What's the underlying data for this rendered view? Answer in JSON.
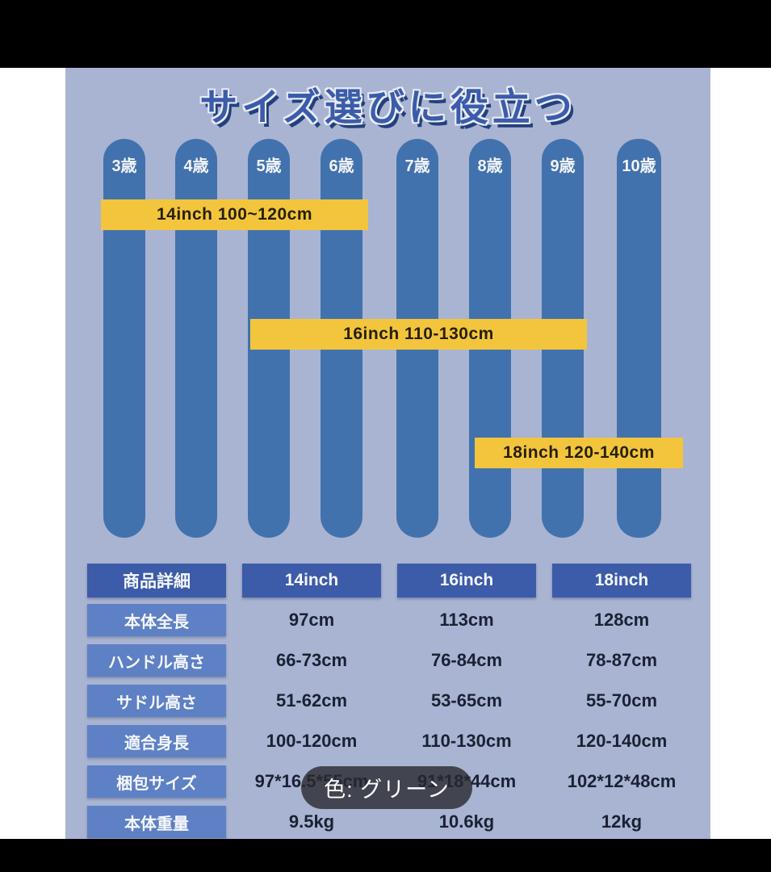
{
  "title": "サイズ選びに役立つ",
  "age_chart": {
    "ages": [
      "3歳",
      "4歳",
      "5歳",
      "6歳",
      "7歳",
      "8歳",
      "9歳",
      "10歳"
    ],
    "bands": [
      {
        "label": "14inch 100~120cm"
      },
      {
        "label": "16inch 110-130cm"
      },
      {
        "label": "18inch 120-140cm"
      }
    ]
  },
  "table": {
    "header": [
      "商品詳細",
      "14inch",
      "16inch",
      "18inch"
    ],
    "rows": [
      {
        "label": "本体全長",
        "values": [
          "97cm",
          "113cm",
          "128cm"
        ]
      },
      {
        "label": "ハンドル高さ",
        "values": [
          "66-73cm",
          "76-84cm",
          "78-87cm"
        ]
      },
      {
        "label": "サドル高さ",
        "values": [
          "51-62cm",
          "53-65cm",
          "55-70cm"
        ]
      },
      {
        "label": "適合身長",
        "values": [
          "100-120cm",
          "110-130cm",
          "120-140cm"
        ]
      },
      {
        "label": "梱包サイズ",
        "values": [
          "97*16.5*55cm",
          "91*18*44cm",
          "102*12*48cm"
        ]
      },
      {
        "label": "本体重量",
        "values": [
          "9.5kg",
          "10.6kg",
          "12kg"
        ]
      }
    ]
  },
  "overlay": {
    "label": "色: グリーン"
  },
  "colors": {
    "panel_background": "#a9b4d2",
    "bar_blue": "#4272ad",
    "band_yellow": "#f2c53d",
    "header_cell_blue": "#3c5ba8",
    "label_cell_blue": "#5e80c4",
    "title_blue": "#3b5caa",
    "value_text": "#1a2133",
    "letterbox_black": "#000000"
  },
  "chart_data": {
    "type": "table",
    "title": "サイズ選びに役立つ",
    "age_axis": [
      "3歳",
      "4歳",
      "5歳",
      "6歳",
      "7歳",
      "8歳",
      "9歳",
      "10歳"
    ],
    "size_ranges": [
      {
        "size": "14inch",
        "height_range": "100~120cm",
        "age_span": [
          "3歳",
          "6歳"
        ]
      },
      {
        "size": "16inch",
        "height_range": "110-130cm",
        "age_span": [
          "5歳",
          "9歳"
        ]
      },
      {
        "size": "18inch",
        "height_range": "120-140cm",
        "age_span": [
          "8歳",
          "10歳"
        ]
      }
    ],
    "columns": [
      "商品詳細",
      "14inch",
      "16inch",
      "18inch"
    ],
    "rows": [
      [
        "本体全長",
        "97cm",
        "113cm",
        "128cm"
      ],
      [
        "ハンドル高さ",
        "66-73cm",
        "76-84cm",
        "78-87cm"
      ],
      [
        "サドル高さ",
        "51-62cm",
        "53-65cm",
        "55-70cm"
      ],
      [
        "適合身長",
        "100-120cm",
        "110-130cm",
        "120-140cm"
      ],
      [
        "梱包サイズ",
        "97*16.5*55cm",
        "91*18*44cm",
        "102*12*48cm"
      ],
      [
        "本体重量",
        "9.5kg",
        "10.6kg",
        "12kg"
      ]
    ]
  }
}
